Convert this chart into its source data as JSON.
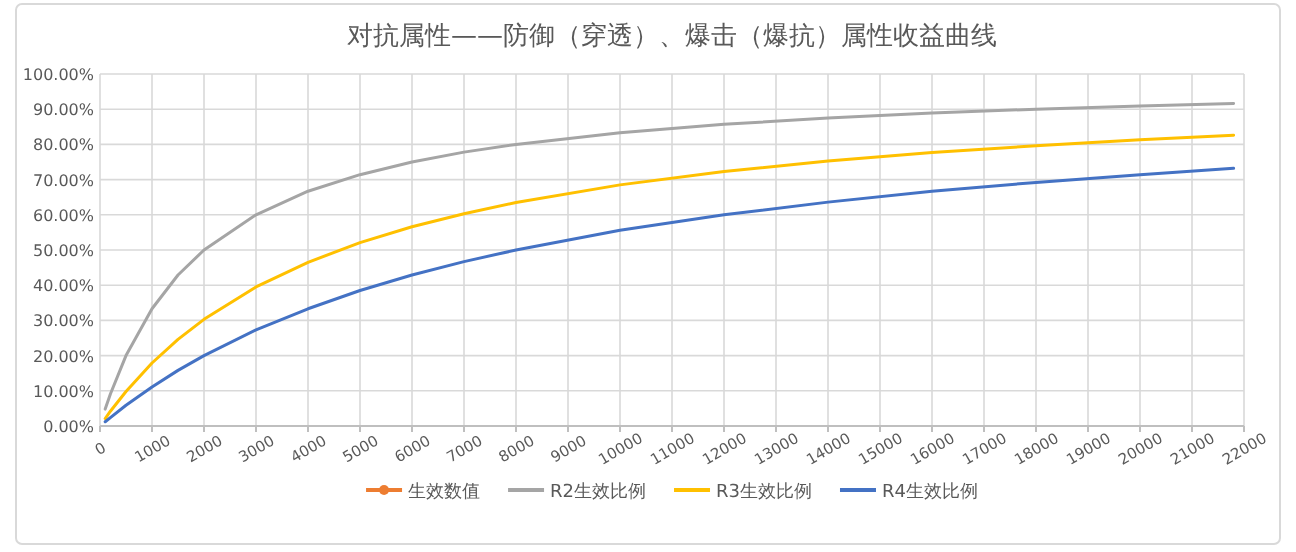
{
  "chart_data": {
    "type": "line",
    "title": "对抗属性——防御（穿透）、爆击（爆抗）属性收益曲线",
    "x": [
      100,
      200,
      500,
      1000,
      1500,
      2000,
      3000,
      4000,
      5000,
      6000,
      7000,
      8000,
      10000,
      12000,
      14000,
      16000,
      18000,
      20000,
      21800
    ],
    "series": [
      {
        "name": "生效数值",
        "color": "#ed7d31",
        "marker": "circle",
        "values": [
          null,
          null,
          null,
          null,
          null,
          null,
          null,
          null,
          null,
          null,
          null,
          null,
          null,
          null,
          null,
          null,
          null,
          null,
          null
        ]
      },
      {
        "name": "R2生效比例",
        "color": "#a5a5a5",
        "values": [
          4.8,
          9.1,
          20,
          33.3,
          42.9,
          50,
          60,
          66.7,
          71.4,
          75,
          77.8,
          80,
          83.3,
          85.7,
          87.5,
          88.9,
          90,
          90.9,
          91.6
        ]
      },
      {
        "name": "R3生效比例",
        "color": "#ffc000",
        "values": [
          2.1,
          4.2,
          9.8,
          17.9,
          24.6,
          30.3,
          39.5,
          46.5,
          52.1,
          56.6,
          60.3,
          63.5,
          68.5,
          72.3,
          75.3,
          77.7,
          79.6,
          81.3,
          82.6
        ]
      },
      {
        "name": "R4生效比例",
        "color": "#4472c4",
        "values": [
          1.2,
          2.4,
          5.9,
          11.1,
          15.8,
          20,
          27.3,
          33.3,
          38.5,
          42.9,
          46.7,
          50,
          55.6,
          60,
          63.6,
          66.7,
          69.2,
          71.4,
          73.2
        ]
      }
    ],
    "xlim": [
      0,
      22000
    ],
    "xticks": [
      0,
      1000,
      2000,
      3000,
      4000,
      5000,
      6000,
      7000,
      8000,
      9000,
      10000,
      11000,
      12000,
      13000,
      14000,
      15000,
      16000,
      17000,
      18000,
      19000,
      20000,
      21000,
      22000
    ],
    "ylim": [
      0,
      100
    ],
    "yticks": [
      {
        "value": 0,
        "label": "0.00%"
      },
      {
        "value": 10,
        "label": "10.00%"
      },
      {
        "value": 20,
        "label": "20.00%"
      },
      {
        "value": 30,
        "label": "30.00%"
      },
      {
        "value": 40,
        "label": "40.00%"
      },
      {
        "value": 50,
        "label": "50.00%"
      },
      {
        "value": 60,
        "label": "60.00%"
      },
      {
        "value": 70,
        "label": "70.00%"
      },
      {
        "value": 80,
        "label": "80.00%"
      },
      {
        "value": 90,
        "label": "90.00%"
      },
      {
        "value": 100,
        "label": "100.00%"
      }
    ],
    "grid": true,
    "legend": "bottom",
    "line_style": "solid"
  }
}
